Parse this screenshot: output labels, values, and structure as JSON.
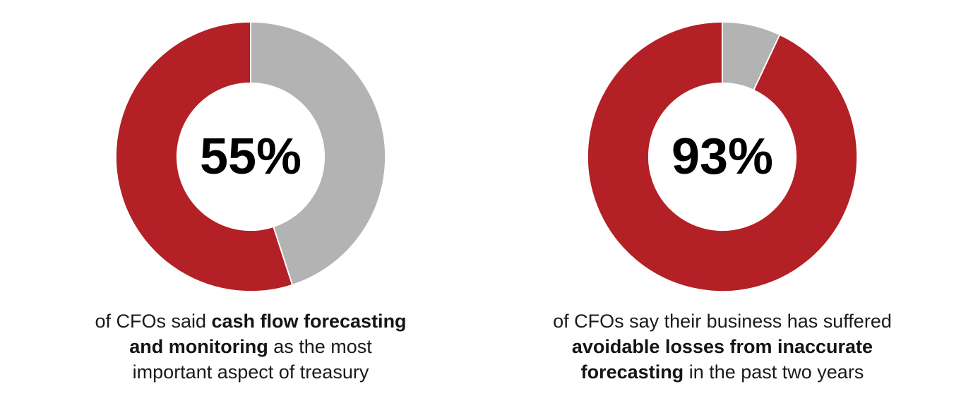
{
  "page": {
    "background_color": "#FFFFFF",
    "caption_text_color": "#1A1A1A",
    "percent_text_color": "#000000"
  },
  "chart_data": [
    {
      "type": "pie",
      "subtype": "donut",
      "center_label": "55%",
      "value_percent": 55,
      "remainder_percent": 45,
      "start_angle_deg": 0,
      "direction": "remainder slice first, clockwise from 12 o'clock",
      "colors": {
        "value": "#B32025",
        "remainder": "#B3B3B3",
        "divider": "#FFFFFF",
        "center_label_text": "#000000"
      },
      "slices": [
        {
          "label": "CFOs who said cash flow forecasting and monitoring as the most important aspect of treasury",
          "value": 55,
          "color": "#B32025"
        },
        {
          "label": "remainder",
          "value": 45,
          "color": "#B3B3B3"
        }
      ],
      "caption_plain": "of CFOs said cash flow forecasting and monitoring as the most important aspect of treasury",
      "caption_lines": [
        [
          {
            "text": "of CFOs said ",
            "bold": false
          },
          {
            "text": "cash flow forecasting",
            "bold": true
          }
        ],
        [
          {
            "text": "and monitoring",
            "bold": true
          },
          {
            "text": " as the most",
            "bold": false
          }
        ],
        [
          {
            "text": "important aspect of treasury",
            "bold": false
          }
        ]
      ]
    },
    {
      "type": "pie",
      "subtype": "donut",
      "center_label": "93%",
      "value_percent": 93,
      "remainder_percent": 7,
      "start_angle_deg": 0,
      "direction": "remainder slice first, clockwise from 12 o'clock",
      "colors": {
        "value": "#B32025",
        "remainder": "#B3B3B3",
        "divider": "#FFFFFF",
        "center_label_text": "#000000"
      },
      "slices": [
        {
          "label": "CFOs who say their business has suffered avoidable losses from inaccurate forecasting in the past two years",
          "value": 93,
          "color": "#B32025"
        },
        {
          "label": "remainder",
          "value": 7,
          "color": "#B3B3B3"
        }
      ],
      "caption_plain": "of CFOs say their business has suffered avoidable losses from inaccurate forecasting in the past two years",
      "caption_lines": [
        [
          {
            "text": "of CFOs say their business has suffered",
            "bold": false
          }
        ],
        [
          {
            "text": "avoidable losses from inaccurate",
            "bold": true
          }
        ],
        [
          {
            "text": "forecasting",
            "bold": true
          },
          {
            "text": " in the past two years",
            "bold": false
          }
        ]
      ]
    }
  ]
}
